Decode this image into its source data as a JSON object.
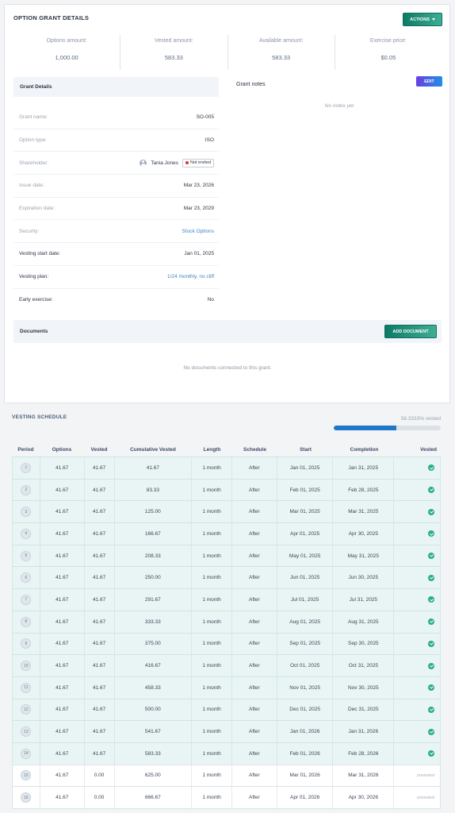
{
  "card_title": "OPTION GRANT DETAILS",
  "actions_label": "ACTIONS",
  "stats": [
    {
      "label": "Options amount:",
      "value": "1,000.00"
    },
    {
      "label": "Vested amount:",
      "value": "583.33"
    },
    {
      "label": "Available amount:",
      "value": "583.33"
    },
    {
      "label": "Exercise price:",
      "value": "$0.05"
    }
  ],
  "grant_details": {
    "title": "Grant Details",
    "grant_name": {
      "label": "Grant name:",
      "value": "SO-005"
    },
    "option_type": {
      "label": "Option type:",
      "value": "ISO"
    },
    "shareholder": {
      "label": "Shareholder:",
      "name": "Tania Jones",
      "badge": "Not invited"
    },
    "issue_date": {
      "label": "Issue date:",
      "value": "Mar 23, 2026"
    },
    "expiration_date": {
      "label": "Expiration date:",
      "value": "Mar 23, 2029"
    },
    "security": {
      "label": "Security:",
      "value": "Stock Options"
    },
    "vesting_start": {
      "label": "Vesting start date:",
      "value": "Jan 01, 2025"
    },
    "vesting_plan": {
      "label": "Vesting plan:",
      "value": "1/24 monthly, no cliff"
    },
    "early_exercise": {
      "label": "Early exercise:",
      "value": "No"
    }
  },
  "grant_notes": {
    "title": "Grant notes",
    "edit_label": "EDIT",
    "empty": "No notes yet"
  },
  "documents": {
    "title": "Documents",
    "add_label": "ADD DOCUMENT",
    "empty": "No documents connected to this grant."
  },
  "vesting": {
    "title": "VESTING SCHEDULE",
    "percent_text": "58.3333% vested",
    "percent_value": 58.3333,
    "columns": [
      "Period",
      "Options",
      "Vested",
      "Cumulative Vested",
      "Length",
      "Schedule",
      "Start",
      "Completion",
      "Vested"
    ],
    "unvested_label": "unvested",
    "rows": [
      {
        "period": "1",
        "options": "41.67",
        "vested": "41.67",
        "cumulative": "41.67",
        "length": "1 month",
        "schedule": "After",
        "start": "Jan 01, 2025",
        "completion": "Jan 31, 2025",
        "is_vested": true
      },
      {
        "period": "2",
        "options": "41.67",
        "vested": "41.67",
        "cumulative": "83.33",
        "length": "1 month",
        "schedule": "After",
        "start": "Feb 01, 2025",
        "completion": "Feb 28, 2025",
        "is_vested": true
      },
      {
        "period": "3",
        "options": "41.67",
        "vested": "41.67",
        "cumulative": "125.00",
        "length": "1 month",
        "schedule": "After",
        "start": "Mar 01, 2025",
        "completion": "Mar 31, 2025",
        "is_vested": true
      },
      {
        "period": "4",
        "options": "41.67",
        "vested": "41.67",
        "cumulative": "166.67",
        "length": "1 month",
        "schedule": "After",
        "start": "Apr 01, 2025",
        "completion": "Apr 30, 2025",
        "is_vested": true
      },
      {
        "period": "5",
        "options": "41.67",
        "vested": "41.67",
        "cumulative": "208.33",
        "length": "1 month",
        "schedule": "After",
        "start": "May 01, 2025",
        "completion": "May 31, 2025",
        "is_vested": true
      },
      {
        "period": "6",
        "options": "41.67",
        "vested": "41.67",
        "cumulative": "250.00",
        "length": "1 month",
        "schedule": "After",
        "start": "Jun 01, 2025",
        "completion": "Jun 30, 2025",
        "is_vested": true
      },
      {
        "period": "7",
        "options": "41.67",
        "vested": "41.67",
        "cumulative": "291.67",
        "length": "1 month",
        "schedule": "After",
        "start": "Jul 01, 2025",
        "completion": "Jul 31, 2025",
        "is_vested": true
      },
      {
        "period": "8",
        "options": "41.67",
        "vested": "41.67",
        "cumulative": "333.33",
        "length": "1 month",
        "schedule": "After",
        "start": "Aug 01, 2025",
        "completion": "Aug 31, 2025",
        "is_vested": true
      },
      {
        "period": "9",
        "options": "41.67",
        "vested": "41.67",
        "cumulative": "375.00",
        "length": "1 month",
        "schedule": "After",
        "start": "Sep 01, 2025",
        "completion": "Sep 30, 2025",
        "is_vested": true
      },
      {
        "period": "10",
        "options": "41.67",
        "vested": "41.67",
        "cumulative": "416.67",
        "length": "1 month",
        "schedule": "After",
        "start": "Oct 01, 2025",
        "completion": "Oct 31, 2025",
        "is_vested": true
      },
      {
        "period": "11",
        "options": "41.67",
        "vested": "41.67",
        "cumulative": "458.33",
        "length": "1 month",
        "schedule": "After",
        "start": "Nov 01, 2025",
        "completion": "Nov 30, 2025",
        "is_vested": true
      },
      {
        "period": "12",
        "options": "41.67",
        "vested": "41.67",
        "cumulative": "500.00",
        "length": "1 month",
        "schedule": "After",
        "start": "Dec 01, 2025",
        "completion": "Dec 31, 2025",
        "is_vested": true
      },
      {
        "period": "13",
        "options": "41.67",
        "vested": "41.67",
        "cumulative": "541.67",
        "length": "1 month",
        "schedule": "After",
        "start": "Jan 01, 2026",
        "completion": "Jan 31, 2026",
        "is_vested": true
      },
      {
        "period": "14",
        "options": "41.67",
        "vested": "41.67",
        "cumulative": "583.33",
        "length": "1 month",
        "schedule": "After",
        "start": "Feb 01, 2026",
        "completion": "Feb 28, 2026",
        "is_vested": true
      },
      {
        "period": "15",
        "options": "41.67",
        "vested": "0.00",
        "cumulative": "625.00",
        "length": "1 month",
        "schedule": "After",
        "start": "Mar 01, 2026",
        "completion": "Mar 31, 2026",
        "is_vested": false
      },
      {
        "period": "16",
        "options": "41.67",
        "vested": "0.00",
        "cumulative": "666.67",
        "length": "1 month",
        "schedule": "After",
        "start": "Apr 01, 2026",
        "completion": "Apr 30, 2026",
        "is_vested": false
      }
    ]
  }
}
